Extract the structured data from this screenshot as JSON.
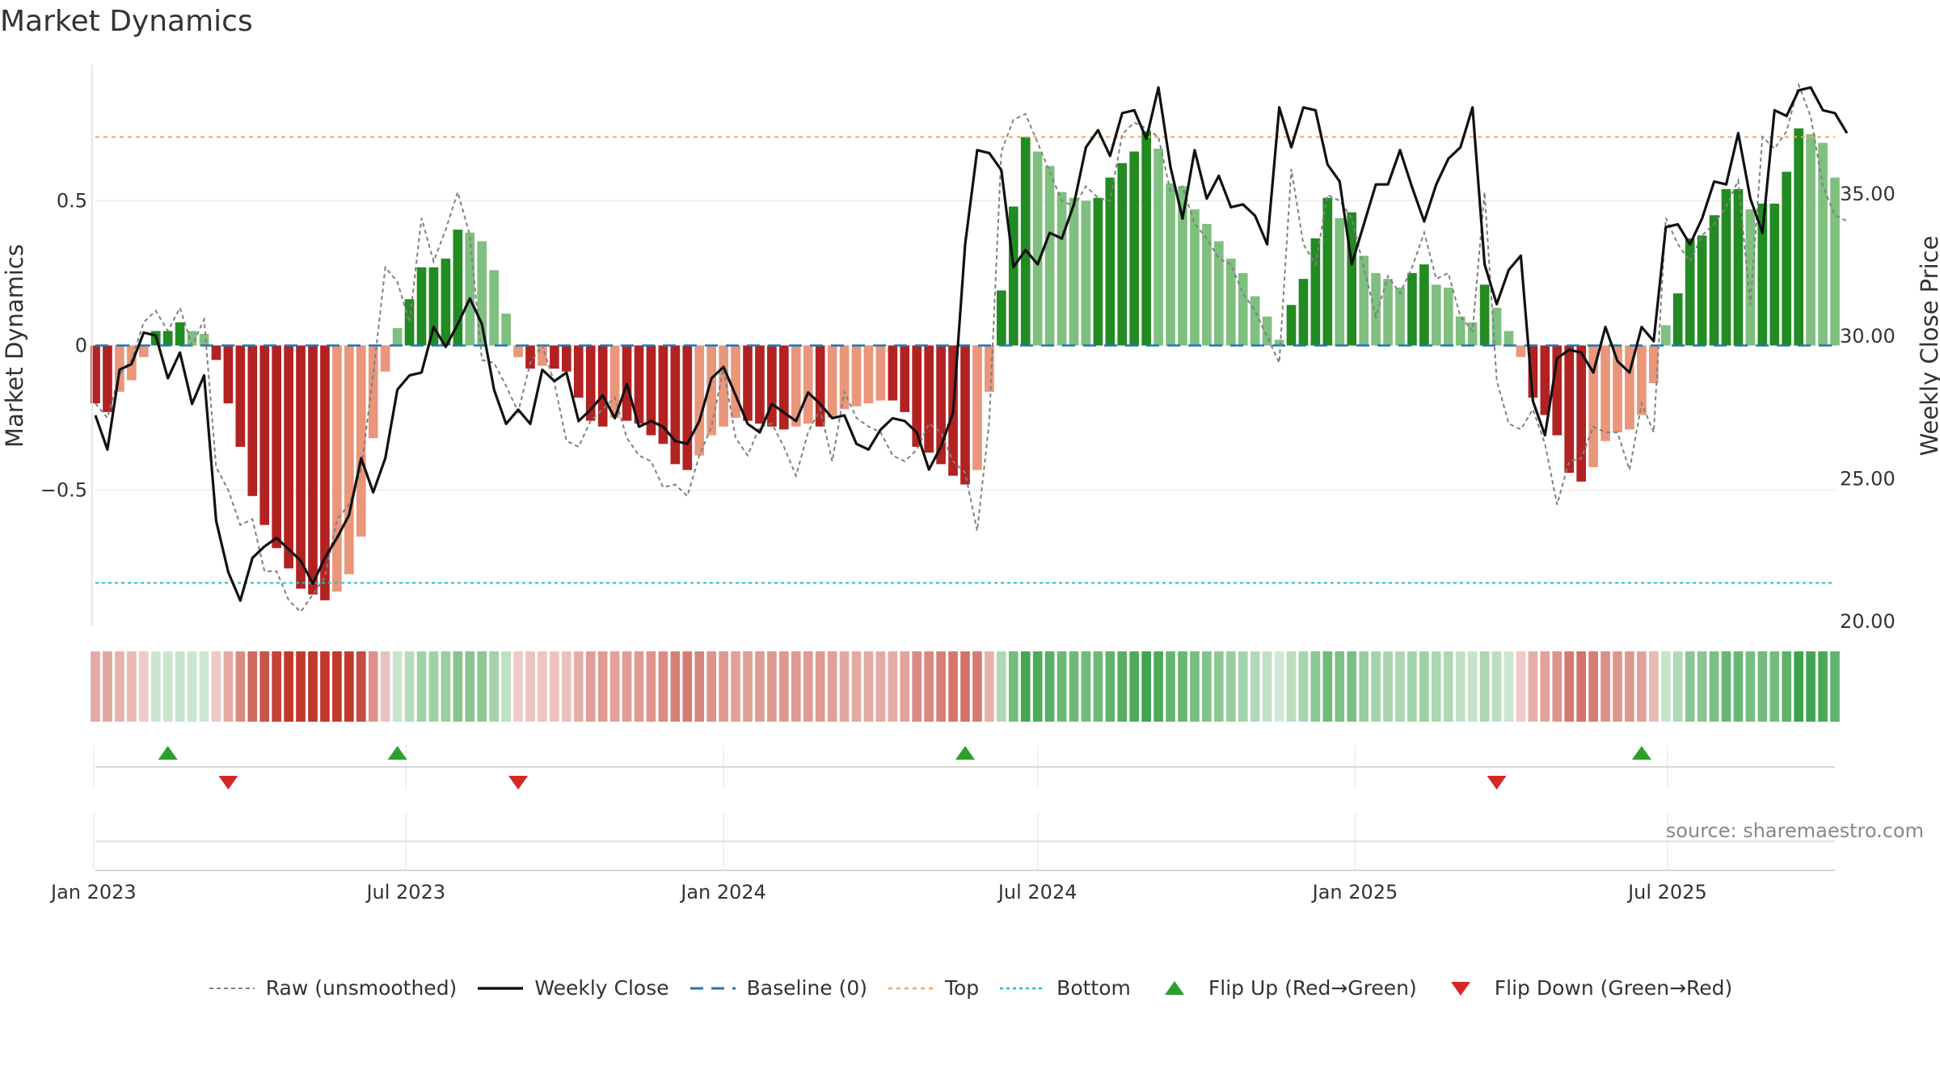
{
  "title": "Market Dynamics",
  "source": "source: sharemaestro.com",
  "legend": [
    {
      "label": "Raw (unsmoothed)",
      "kind": "dashed-gray"
    },
    {
      "label": "Weekly Close",
      "kind": "solid-black"
    },
    {
      "label": "Baseline (0)",
      "kind": "dashed-blue"
    },
    {
      "label": "Top",
      "kind": "dotted-orange"
    },
    {
      "label": "Bottom",
      "kind": "dotted-cyan"
    },
    {
      "label": "Flip Up (Red→Green)",
      "kind": "triangle-up"
    },
    {
      "label": "Flip Down (Green→Red)",
      "kind": "triangle-down"
    }
  ],
  "colors": {
    "strong_green": "#228b22",
    "light_green": "#7fbf7f",
    "strong_red": "#b22222",
    "light_red": "#e9967a",
    "raw": "#808080",
    "close": "#111111",
    "baseline": "#1f77b4",
    "top": "#f4a460",
    "bottom": "#20c0c0",
    "flip_up": "#2ca02c",
    "flip_down": "#d62728"
  },
  "chart_data": {
    "type": "bar",
    "start_date": "2023-01-02",
    "interval": "weekly",
    "ylabel": "Market Dynamics",
    "y2label": "Weekly Close Price",
    "ylim": [
      -0.97,
      0.97
    ],
    "y2lim": [
      19.8,
      39.5
    ],
    "yticks": [
      "0.5",
      "0",
      "−0.5"
    ],
    "yticks_values": [
      0.5,
      0,
      -0.5
    ],
    "y2ticks": [
      "35.00",
      "30.00",
      "25.00",
      "20.00"
    ],
    "y2ticks_values": [
      35,
      30,
      25,
      20
    ],
    "xticks": [
      "Jan 2023",
      "Jul 2023",
      "Jan 2024",
      "Jul 2024",
      "Jan 2025",
      "Jul 2025"
    ],
    "xticks_dates": [
      "2023-01-01",
      "2023-07-01",
      "2024-01-01",
      "2024-07-01",
      "2025-01-01",
      "2025-07-01"
    ],
    "top_line": 0.72,
    "bottom_line": -0.82,
    "baseline": 0,
    "flip_up_dates": [
      "2023-02-13",
      "2023-06-26",
      "2024-05-20",
      "2025-06-16"
    ],
    "flip_down_dates": [
      "2023-03-20",
      "2023-09-04",
      "2025-03-24"
    ],
    "series": [
      {
        "name": "Market Dynamics",
        "values": [
          -0.2,
          -0.23,
          -0.16,
          -0.12,
          -0.04,
          0.05,
          0.05,
          0.08,
          0.05,
          0.04,
          -0.05,
          -0.2,
          -0.35,
          -0.52,
          -0.62,
          -0.7,
          -0.77,
          -0.84,
          -0.86,
          -0.88,
          -0.85,
          -0.79,
          -0.66,
          -0.32,
          -0.09,
          0.06,
          0.16,
          0.27,
          0.27,
          0.3,
          0.4,
          0.39,
          0.36,
          0.26,
          0.11,
          -0.04,
          -0.08,
          -0.07,
          -0.08,
          -0.09,
          -0.18,
          -0.26,
          -0.28,
          -0.25,
          -0.26,
          -0.27,
          -0.31,
          -0.34,
          -0.41,
          -0.43,
          -0.38,
          -0.31,
          -0.28,
          -0.25,
          -0.26,
          -0.27,
          -0.28,
          -0.29,
          -0.28,
          -0.27,
          -0.28,
          -0.25,
          -0.22,
          -0.21,
          -0.2,
          -0.19,
          -0.19,
          -0.23,
          -0.35,
          -0.37,
          -0.41,
          -0.45,
          -0.48,
          -0.43,
          -0.16,
          0.19,
          0.48,
          0.72,
          0.67,
          0.62,
          0.53,
          0.51,
          0.5,
          0.51,
          0.58,
          0.63,
          0.67,
          0.74,
          0.68,
          0.56,
          0.55,
          0.47,
          0.42,
          0.36,
          0.3,
          0.25,
          0.17,
          0.1,
          0.02,
          0.14,
          0.23,
          0.37,
          0.51,
          0.44,
          0.46,
          0.31,
          0.25,
          0.23,
          0.2,
          0.25,
          0.28,
          0.21,
          0.2,
          0.1,
          0.08,
          0.21,
          0.13,
          0.05,
          -0.04,
          -0.18,
          -0.24,
          -0.31,
          -0.44,
          -0.47,
          -0.42,
          -0.33,
          -0.3,
          -0.29,
          -0.24,
          -0.13,
          0.07,
          0.18,
          0.37,
          0.38,
          0.45,
          0.54,
          0.54,
          0.47,
          0.49,
          0.49,
          0.6,
          0.75,
          0.73,
          0.7,
          0.58
        ]
      },
      {
        "name": "Raw (unsmoothed)",
        "values": [
          -0.2,
          -0.25,
          -0.1,
          -0.05,
          0.08,
          0.12,
          0.05,
          0.13,
          0.0,
          0.09,
          -0.42,
          -0.5,
          -0.62,
          -0.6,
          -0.78,
          -0.78,
          -0.88,
          -0.92,
          -0.86,
          -0.8,
          -0.6,
          -0.55,
          -0.43,
          -0.1,
          0.27,
          0.22,
          0.08,
          0.44,
          0.29,
          0.4,
          0.53,
          0.38,
          -0.05,
          -0.06,
          -0.14,
          -0.23,
          -0.06,
          0.0,
          -0.13,
          -0.33,
          -0.35,
          -0.26,
          -0.22,
          -0.18,
          -0.32,
          -0.38,
          -0.4,
          -0.49,
          -0.48,
          -0.52,
          -0.38,
          -0.28,
          -0.08,
          -0.32,
          -0.38,
          -0.28,
          -0.27,
          -0.35,
          -0.45,
          -0.3,
          -0.22,
          -0.4,
          -0.16,
          -0.25,
          -0.28,
          -0.3,
          -0.38,
          -0.4,
          -0.36,
          -0.27,
          -0.3,
          -0.4,
          -0.44,
          -0.64,
          -0.26,
          0.67,
          0.78,
          0.8,
          0.7,
          0.6,
          0.5,
          0.48,
          0.55,
          0.51,
          0.5,
          0.73,
          0.77,
          0.75,
          0.72,
          0.53,
          0.55,
          0.42,
          0.37,
          0.3,
          0.28,
          0.18,
          0.12,
          0.03,
          -0.06,
          0.61,
          0.35,
          0.28,
          0.52,
          0.5,
          0.44,
          0.27,
          0.1,
          0.24,
          0.18,
          0.27,
          0.39,
          0.23,
          0.25,
          0.1,
          0.05,
          0.53,
          -0.12,
          -0.27,
          -0.29,
          -0.22,
          -0.34,
          -0.55,
          -0.4,
          -0.39,
          -0.28,
          -0.3,
          -0.3,
          -0.43,
          -0.2,
          -0.3,
          0.44,
          0.35,
          0.29,
          0.38,
          0.42,
          0.48,
          0.57,
          0.14,
          0.72,
          0.68,
          0.74,
          0.9,
          0.79,
          0.55,
          0.45,
          0.43
        ]
      },
      {
        "name": "Weekly Close",
        "values": [
          27.2,
          26.0,
          28.8,
          29.0,
          30.1,
          30.0,
          28.5,
          29.4,
          27.6,
          28.6,
          23.5,
          21.7,
          20.7,
          22.2,
          22.6,
          22.9,
          22.5,
          22.1,
          21.3,
          22.2,
          22.9,
          23.7,
          25.7,
          24.5,
          25.7,
          28.1,
          28.6,
          28.7,
          30.3,
          29.6,
          30.4,
          31.3,
          30.4,
          28.1,
          26.9,
          27.4,
          26.9,
          28.8,
          28.4,
          28.7,
          27.0,
          27.4,
          27.9,
          27.1,
          28.3,
          26.8,
          27.0,
          26.8,
          26.3,
          26.2,
          27.0,
          28.5,
          28.9,
          27.9,
          26.9,
          26.6,
          27.6,
          27.3,
          27.0,
          28.0,
          27.6,
          27.1,
          27.2,
          26.2,
          26.0,
          26.7,
          27.1,
          27.0,
          26.6,
          25.3,
          26.1,
          27.3,
          33.2,
          36.5,
          36.4,
          35.8,
          32.4,
          33.0,
          32.5,
          33.6,
          33.4,
          34.6,
          36.6,
          37.2,
          36.3,
          37.8,
          37.9,
          36.9,
          38.7,
          35.9,
          34.1,
          36.5,
          34.8,
          35.6,
          34.5,
          34.6,
          34.2,
          33.2,
          38.0,
          36.6,
          38.0,
          37.9,
          36.0,
          35.4,
          32.5,
          33.9,
          35.3,
          35.3,
          36.5,
          35.2,
          34.0,
          35.3,
          36.2,
          36.6,
          38.0,
          32.5,
          31.1,
          32.3,
          32.8,
          27.7,
          26.5,
          29.2,
          29.5,
          29.4,
          28.7,
          30.3,
          29.1,
          28.7,
          30.3,
          29.8,
          33.8,
          33.9,
          33.2,
          34.1,
          35.4,
          35.3,
          37.1,
          34.8,
          33.6,
          37.9,
          37.7,
          38.6,
          38.7,
          37.9,
          37.8,
          37.1
        ]
      }
    ]
  }
}
